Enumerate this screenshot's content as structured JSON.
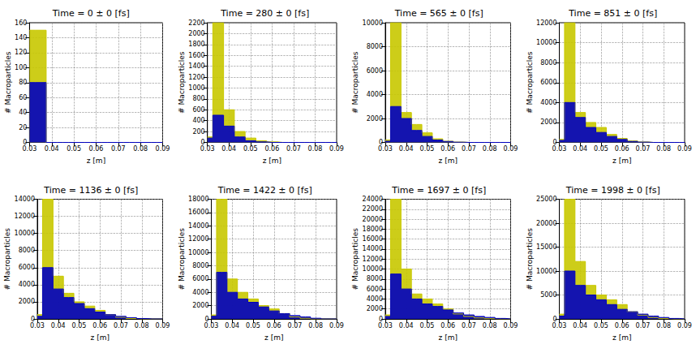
{
  "chart_data": [
    {
      "type": "line",
      "title": "Time = 0 ± 0 [fs]",
      "xlabel": "z [m]",
      "ylabel": "# Macroparticles",
      "grid": true,
      "x": [
        0.03,
        0.035,
        0.04,
        0.045,
        0.05,
        0.055,
        0.06,
        0.065,
        0.07,
        0.075,
        0.08,
        0.085,
        0.09
      ],
      "series": [
        {
          "color": "#c8c800",
          "values": [
            150,
            150,
            0,
            0,
            0,
            0,
            0,
            0,
            0,
            0,
            0,
            0,
            0
          ]
        },
        {
          "color": "#0000c0",
          "values": [
            80,
            80,
            0,
            0,
            0,
            0,
            0,
            0,
            0,
            0,
            0,
            0,
            0
          ]
        }
      ],
      "xlim": [
        0.03,
        0.09
      ],
      "xticks": [
        0.03,
        0.04,
        0.05,
        0.06,
        0.07,
        0.08,
        0.09
      ],
      "ylim": [
        0,
        160
      ],
      "yticks": [
        0,
        20,
        40,
        60,
        80,
        100,
        120,
        140,
        160
      ]
    },
    {
      "type": "line",
      "title": "Time = 280 ± 0 [fs]",
      "xlabel": "z [m]",
      "ylabel": "# Macroparticles",
      "grid": true,
      "x": [
        0.03,
        0.035,
        0.04,
        0.045,
        0.05,
        0.055,
        0.06,
        0.065,
        0.07,
        0.075,
        0.08,
        0.085,
        0.09
      ],
      "series": [
        {
          "color": "#c8c800",
          "values": [
            100,
            2200,
            600,
            200,
            80,
            30,
            10,
            0,
            0,
            0,
            0,
            0,
            0
          ]
        },
        {
          "color": "#0000c0",
          "values": [
            80,
            500,
            300,
            100,
            30,
            10,
            0,
            0,
            0,
            0,
            0,
            0,
            0
          ]
        }
      ],
      "xlim": [
        0.03,
        0.09
      ],
      "xticks": [
        0.03,
        0.04,
        0.05,
        0.06,
        0.07,
        0.08,
        0.09
      ],
      "ylim": [
        0,
        2200
      ],
      "yticks": [
        0,
        200,
        400,
        600,
        800,
        1000,
        1200,
        1400,
        1600,
        1800,
        2000,
        2200
      ]
    },
    {
      "type": "line",
      "title": "Time = 565 ± 0 [fs]",
      "xlabel": "z [m]",
      "ylabel": "# Macroparticles",
      "grid": true,
      "x": [
        0.03,
        0.035,
        0.04,
        0.045,
        0.05,
        0.055,
        0.06,
        0.065,
        0.07,
        0.075,
        0.08,
        0.085,
        0.09
      ],
      "series": [
        {
          "color": "#c8c800",
          "values": [
            200,
            10000,
            2500,
            1500,
            800,
            300,
            100,
            30,
            0,
            0,
            0,
            0,
            0
          ]
        },
        {
          "color": "#0000c0",
          "values": [
            100,
            3000,
            2000,
            1000,
            500,
            200,
            80,
            20,
            0,
            0,
            0,
            0,
            0
          ]
        }
      ],
      "xlim": [
        0.03,
        0.09
      ],
      "xticks": [
        0.03,
        0.04,
        0.05,
        0.06,
        0.07,
        0.08,
        0.09
      ],
      "ylim": [
        0,
        10000
      ],
      "yticks": [
        0,
        2000,
        4000,
        6000,
        8000,
        10000
      ]
    },
    {
      "type": "line",
      "title": "Time = 851 ± 0 [fs]",
      "xlabel": "z [m]",
      "ylabel": "# Macroparticles",
      "grid": true,
      "x": [
        0.03,
        0.035,
        0.04,
        0.045,
        0.05,
        0.055,
        0.06,
        0.065,
        0.07,
        0.075,
        0.08,
        0.085,
        0.09
      ],
      "series": [
        {
          "color": "#c8c800",
          "values": [
            300,
            12000,
            3000,
            2000,
            1500,
            800,
            400,
            150,
            50,
            0,
            0,
            0,
            0
          ]
        },
        {
          "color": "#0000c0",
          "values": [
            200,
            4000,
            2500,
            1500,
            1000,
            600,
            300,
            100,
            30,
            0,
            0,
            0,
            0
          ]
        }
      ],
      "xlim": [
        0.03,
        0.09
      ],
      "xticks": [
        0.03,
        0.04,
        0.05,
        0.06,
        0.07,
        0.08,
        0.09
      ],
      "ylim": [
        0,
        12000
      ],
      "yticks": [
        0,
        2000,
        4000,
        6000,
        8000,
        10000,
        12000
      ]
    },
    {
      "type": "line",
      "title": "Time = 1136 ± 0 [fs]",
      "xlabel": "z [m]",
      "ylabel": "# Macroparticles",
      "grid": true,
      "x": [
        0.03,
        0.035,
        0.04,
        0.045,
        0.05,
        0.055,
        0.06,
        0.065,
        0.07,
        0.075,
        0.08,
        0.085,
        0.09
      ],
      "series": [
        {
          "color": "#c8c800",
          "values": [
            500,
            14000,
            5000,
            3000,
            2000,
            1500,
            1000,
            500,
            200,
            50,
            0,
            0,
            0
          ]
        },
        {
          "color": "#0000c0",
          "values": [
            300,
            6000,
            3500,
            2500,
            1800,
            1200,
            800,
            500,
            300,
            150,
            50,
            0,
            0
          ]
        }
      ],
      "xlim": [
        0.03,
        0.09
      ],
      "xticks": [
        0.03,
        0.04,
        0.05,
        0.06,
        0.07,
        0.08,
        0.09
      ],
      "ylim": [
        0,
        14000
      ],
      "yticks": [
        0,
        2000,
        4000,
        6000,
        8000,
        10000,
        12000,
        14000
      ]
    },
    {
      "type": "line",
      "title": "Time = 1422 ± 0 [fs]",
      "xlabel": "z [m]",
      "ylabel": "# Macroparticles",
      "grid": true,
      "x": [
        0.03,
        0.035,
        0.04,
        0.045,
        0.05,
        0.055,
        0.06,
        0.065,
        0.07,
        0.075,
        0.08,
        0.085,
        0.09
      ],
      "series": [
        {
          "color": "#c8c800",
          "values": [
            600,
            18000,
            6000,
            4000,
            3000,
            2000,
            1500,
            800,
            300,
            100,
            0,
            0,
            0
          ]
        },
        {
          "color": "#0000c0",
          "values": [
            400,
            7000,
            4000,
            3000,
            2500,
            1800,
            1200,
            800,
            500,
            300,
            100,
            0,
            0
          ]
        }
      ],
      "xlim": [
        0.03,
        0.09
      ],
      "xticks": [
        0.03,
        0.04,
        0.05,
        0.06,
        0.07,
        0.08,
        0.09
      ],
      "ylim": [
        0,
        18000
      ],
      "yticks": [
        0,
        2000,
        4000,
        6000,
        8000,
        10000,
        12000,
        14000,
        16000,
        18000
      ]
    },
    {
      "type": "line",
      "title": "Time = 1697 ± 0 [fs]",
      "xlabel": "z [m]",
      "ylabel": "# Macroparticles",
      "grid": true,
      "x": [
        0.03,
        0.035,
        0.04,
        0.045,
        0.05,
        0.055,
        0.06,
        0.065,
        0.07,
        0.075,
        0.08,
        0.085,
        0.09
      ],
      "series": [
        {
          "color": "#c8c800",
          "values": [
            800,
            24000,
            10000,
            5000,
            4000,
            3000,
            2000,
            1000,
            500,
            200,
            50,
            0,
            0
          ]
        },
        {
          "color": "#0000c0",
          "values": [
            500,
            9000,
            6000,
            4000,
            3000,
            2500,
            1800,
            1200,
            800,
            500,
            300,
            100,
            0
          ]
        }
      ],
      "xlim": [
        0.03,
        0.09
      ],
      "xticks": [
        0.03,
        0.04,
        0.05,
        0.06,
        0.07,
        0.08,
        0.09
      ],
      "ylim": [
        0,
        24000
      ],
      "yticks": [
        0,
        2000,
        4000,
        6000,
        8000,
        10000,
        12000,
        14000,
        16000,
        18000,
        20000,
        22000,
        24000
      ]
    },
    {
      "type": "line",
      "title": "Time = 1998 ± 0 [fs]",
      "xlabel": "z [m]",
      "ylabel": "# Macroparticles",
      "grid": true,
      "x": [
        0.03,
        0.035,
        0.04,
        0.045,
        0.05,
        0.055,
        0.06,
        0.065,
        0.07,
        0.075,
        0.08,
        0.085,
        0.09
      ],
      "series": [
        {
          "color": "#c8c800",
          "values": [
            1000,
            25000,
            12000,
            7000,
            5000,
            4000,
            3000,
            1500,
            800,
            300,
            100,
            0,
            0
          ]
        },
        {
          "color": "#0000c0",
          "values": [
            600,
            10000,
            7000,
            5000,
            4000,
            3000,
            2000,
            1500,
            1000,
            600,
            300,
            100,
            0
          ]
        }
      ],
      "xlim": [
        0.03,
        0.09
      ],
      "xticks": [
        0.03,
        0.04,
        0.05,
        0.06,
        0.07,
        0.08,
        0.09
      ],
      "ylim": [
        0,
        25000
      ],
      "yticks": [
        0,
        5000,
        10000,
        15000,
        20000,
        25000
      ]
    }
  ]
}
